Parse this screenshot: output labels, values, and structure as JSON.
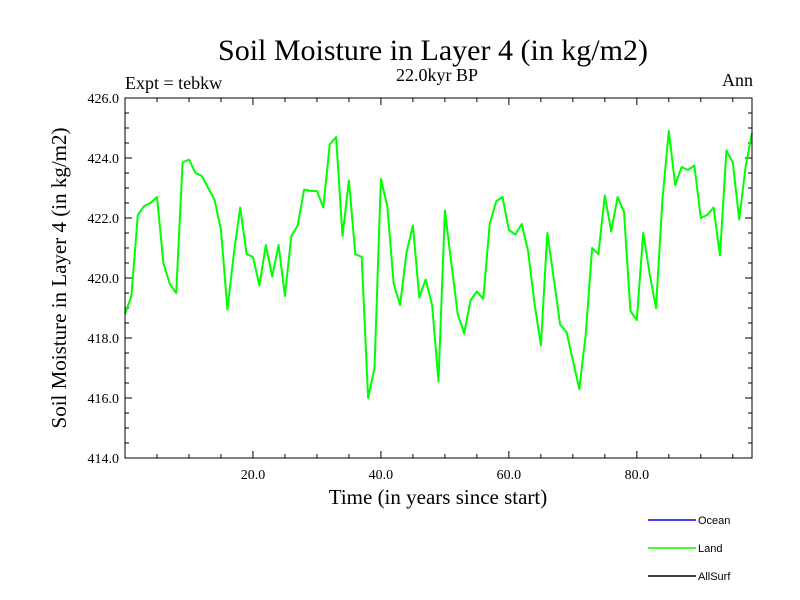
{
  "chart_data": {
    "type": "line",
    "title": "Soil Moisture in Layer 4 (in kg/m2)",
    "subtitle_left": "Expt = tebkw",
    "subtitle_center": "22.0kyr BP",
    "subtitle_right": "Ann",
    "xlabel": "Time (in years since start)",
    "ylabel": "Soil Moisture in Layer 4 (in kg/m2)",
    "xlim": [
      0,
      98
    ],
    "ylim": [
      414.0,
      426.0
    ],
    "xticks": [
      20,
      40,
      60,
      80
    ],
    "xtick_labels": [
      "20.0",
      "40.0",
      "60.0",
      "80.0"
    ],
    "yticks": [
      414,
      416,
      418,
      420,
      422,
      424,
      426
    ],
    "ytick_labels": [
      "414.0",
      "416.0",
      "418.0",
      "420.0",
      "422.0",
      "424.0",
      "426.0"
    ],
    "legend": [
      {
        "name": "Ocean",
        "color": "#0000ff"
      },
      {
        "name": "Land",
        "color": "#00ff00"
      },
      {
        "name": "AllSurf",
        "color": "#000000"
      }
    ],
    "series": [
      {
        "name": "Land",
        "color": "#00ff00",
        "x": [
          0,
          1,
          2,
          3,
          4,
          5,
          6,
          7,
          8,
          9,
          10,
          11,
          12,
          13,
          14,
          15,
          16,
          17,
          18,
          19,
          20,
          21,
          22,
          23,
          24,
          25,
          26,
          27,
          28,
          29,
          30,
          31,
          32,
          33,
          34,
          35,
          36,
          37,
          38,
          39,
          40,
          41,
          42,
          43,
          44,
          45,
          46,
          47,
          48,
          49,
          50,
          51,
          52,
          53,
          54,
          55,
          56,
          57,
          58,
          59,
          60,
          61,
          62,
          63,
          64,
          65,
          66,
          67,
          68,
          69,
          70,
          71,
          72,
          73,
          74,
          75,
          76,
          77,
          78,
          79,
          80,
          81,
          82,
          83,
          84,
          85,
          86,
          87,
          88,
          89,
          90,
          91,
          92,
          93,
          94,
          95,
          96,
          97,
          98
        ],
        "values": [
          418.8,
          419.4,
          422.1,
          422.4,
          422.5,
          422.7,
          420.5,
          419.8,
          419.5,
          423.85,
          423.95,
          423.5,
          423.4,
          423.0,
          422.6,
          421.6,
          418.95,
          420.8,
          422.35,
          420.8,
          420.7,
          419.75,
          421.1,
          420.05,
          421.1,
          419.4,
          421.4,
          421.75,
          422.95,
          422.9,
          422.9,
          422.35,
          424.45,
          424.7,
          421.4,
          423.25,
          420.8,
          420.7,
          416.0,
          417.0,
          423.3,
          422.4,
          419.8,
          419.1,
          420.85,
          421.75,
          419.35,
          419.95,
          419.1,
          416.55,
          422.25,
          420.5,
          418.8,
          418.15,
          419.25,
          419.55,
          419.3,
          421.8,
          422.55,
          422.7,
          421.6,
          421.45,
          421.8,
          420.9,
          419.15,
          417.75,
          421.5,
          420.0,
          418.45,
          418.2,
          417.25,
          416.3,
          418.1,
          421.0,
          420.8,
          422.75,
          421.55,
          422.7,
          422.2,
          418.9,
          418.6,
          421.5,
          420.15,
          419.0,
          422.6,
          424.9,
          423.1,
          423.7,
          423.6,
          423.75,
          422.0,
          422.1,
          422.35,
          420.75,
          424.25,
          423.85,
          421.95,
          423.7,
          424.85
        ]
      }
    ]
  }
}
